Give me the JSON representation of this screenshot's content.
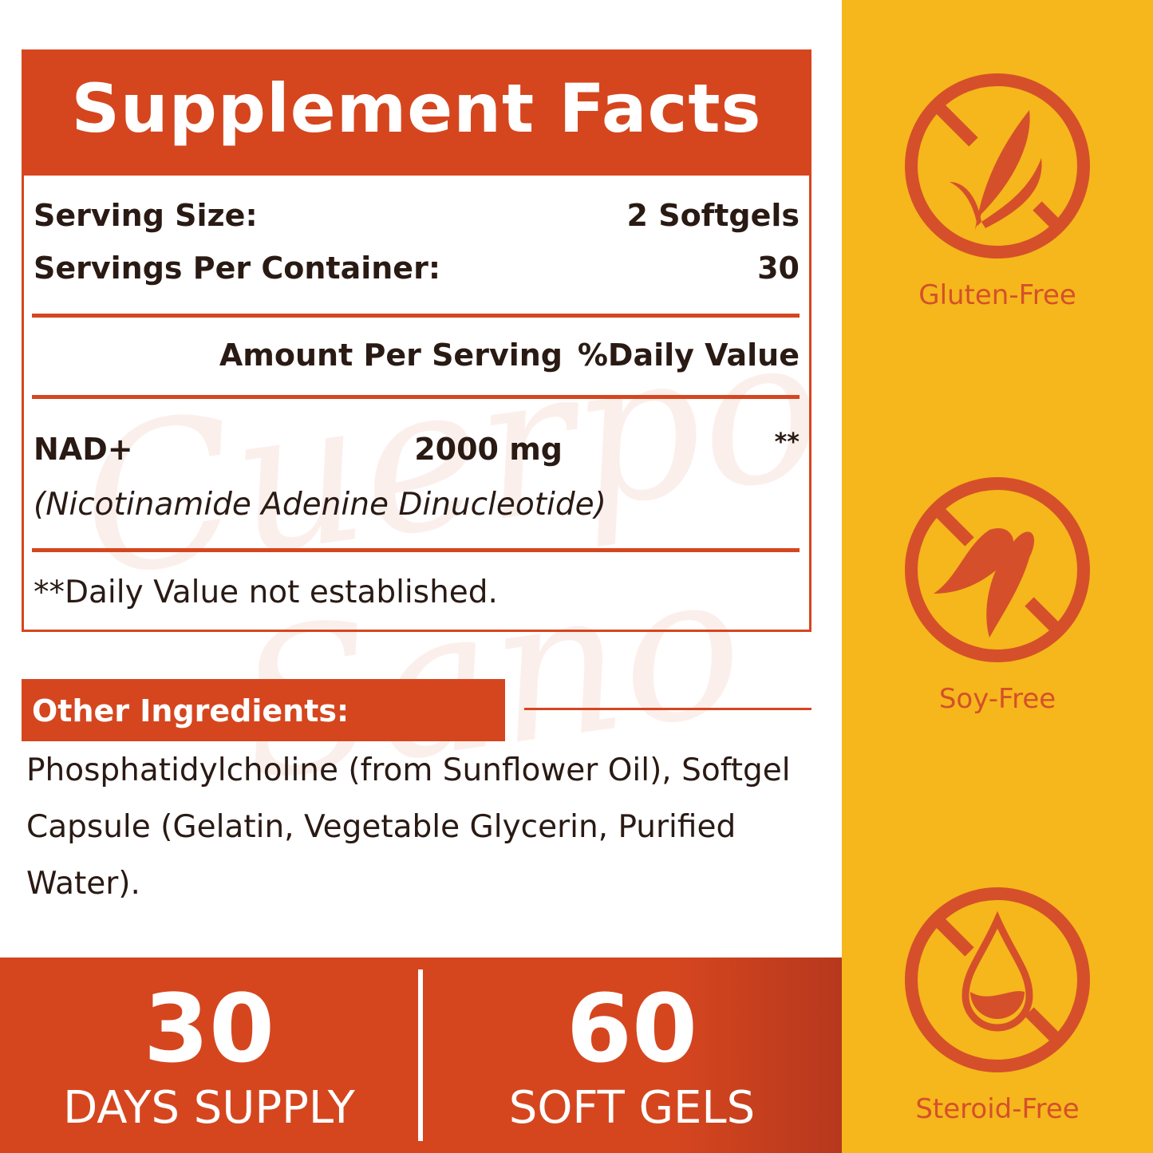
{
  "facts": {
    "title": "Supplement Facts",
    "serving_size_label": "Serving Size:",
    "serving_size_value": "2 Softgels",
    "servings_per_container_label": "Servings Per Container:",
    "servings_per_container_value": "30",
    "amount_header": "Amount Per Serving",
    "dv_header": "%Daily Value",
    "ingredient_name": "NAD+",
    "ingredient_amount": "2000 mg",
    "ingredient_dv": "**",
    "ingredient_desc": "(Nicotinamide Adenine Dinucleotide)",
    "footnote": "**Daily Value not established."
  },
  "watermark": "Cuerpo Sano",
  "other": {
    "title": "Other Ingredients:",
    "text": "Phosphatidylcholine (from Sunflower Oil), Softgel Capsule (Gelatin, Vegetable Glycerin, Purified Water)."
  },
  "bottom": {
    "days_number": "30",
    "days_label": "DAYS SUPPLY",
    "gels_number": "60",
    "gels_label": "SOFT GELS"
  },
  "badges": [
    {
      "label": "Gluten-Free",
      "icon": "no-wheat-icon"
    },
    {
      "label": "Soy-Free",
      "icon": "no-soy-icon"
    },
    {
      "label": "Steroid-Free",
      "icon": "no-drop-icon"
    }
  ],
  "colors": {
    "brand_red": "#d5461f",
    "panel_yellow": "#f5b71c",
    "icon_red": "#d5502a"
  }
}
